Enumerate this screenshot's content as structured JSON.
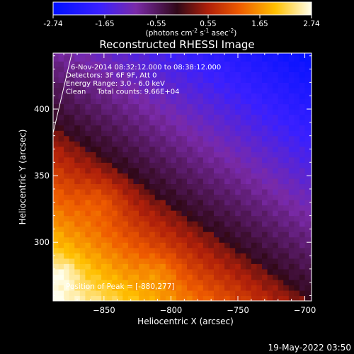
{
  "colorbar": {
    "ticks": [
      "-2.74",
      "-1.65",
      "-0.55",
      "0.55",
      "1.65",
      "2.74"
    ],
    "unit_base": "(photons cm",
    "unit_exp1": "-2",
    "unit_mid": " s",
    "unit_exp2": "-1",
    "unit_mid2": " asec",
    "unit_exp3": "-2",
    "unit_end": ")",
    "min": -2.74,
    "max": 2.74
  },
  "chart_data": {
    "type": "heatmap",
    "title": "Reconstructed RHESSI Image",
    "xlabel": "Heliocentric X (arcsec)",
    "ylabel": "Heliocentric Y (arcsec)",
    "xlim": [
      -888,
      -695
    ],
    "ylim": [
      256,
      442
    ],
    "x_ticks": [
      -850,
      -800,
      -750,
      -700
    ],
    "y_ticks": [
      300,
      350,
      400
    ],
    "x_tick_labels": [
      "−850",
      "−800",
      "−750",
      "−700"
    ],
    "y_tick_labels": [
      "300",
      "350",
      "400"
    ],
    "annotations": [
      "6-Nov-2014 08:32:12.000 to 08:38:12.000",
      "Detectors: 3F 6F 9F, Att 0",
      "Energy Range: 3.0 - 6.0 keV",
      "Clean     Total counts: 9.66E+04"
    ],
    "peak_label": "Position of Peak = [-880,277]",
    "peak": [
      -880,
      277
    ],
    "limb_line": [
      [
        -888,
        382
      ],
      [
        -874,
        442
      ]
    ]
  },
  "footer": {
    "date": "19-May-2022 03:50"
  }
}
